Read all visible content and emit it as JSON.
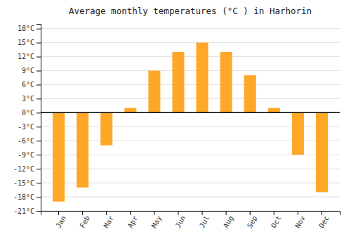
{
  "chart_data": {
    "type": "bar",
    "title": "Average monthly temperatures (°C ) in Harhorin",
    "categories": [
      "Jan",
      "Feb",
      "Mar",
      "Apr",
      "May",
      "Jun",
      "Jul",
      "Aug",
      "Sep",
      "Oct",
      "Nov",
      "Dec"
    ],
    "values": [
      -19,
      -16,
      -7,
      1,
      9,
      13,
      15,
      13,
      8,
      1,
      -9,
      -17
    ],
    "color": "#FFA726",
    "ylim": [
      -21,
      19
    ],
    "yticks": [
      {
        "value": -21,
        "label": "-21°C"
      },
      {
        "value": -18,
        "label": "-18°C"
      },
      {
        "value": -15,
        "label": "-15°C"
      },
      {
        "value": -12,
        "label": "-12°C"
      },
      {
        "value": -9,
        "label": "-9°C"
      },
      {
        "value": -6,
        "label": "-6°C"
      },
      {
        "value": -3,
        "label": "-3°C"
      },
      {
        "value": 0,
        "label": "0°C"
      },
      {
        "value": 3,
        "label": "3°C"
      },
      {
        "value": 6,
        "label": "6°C"
      },
      {
        "value": 9,
        "label": "9°C"
      },
      {
        "value": 12,
        "label": "12°C"
      },
      {
        "value": 15,
        "label": "15°C"
      },
      {
        "value": 18,
        "label": "18°C"
      }
    ],
    "grid": true
  }
}
